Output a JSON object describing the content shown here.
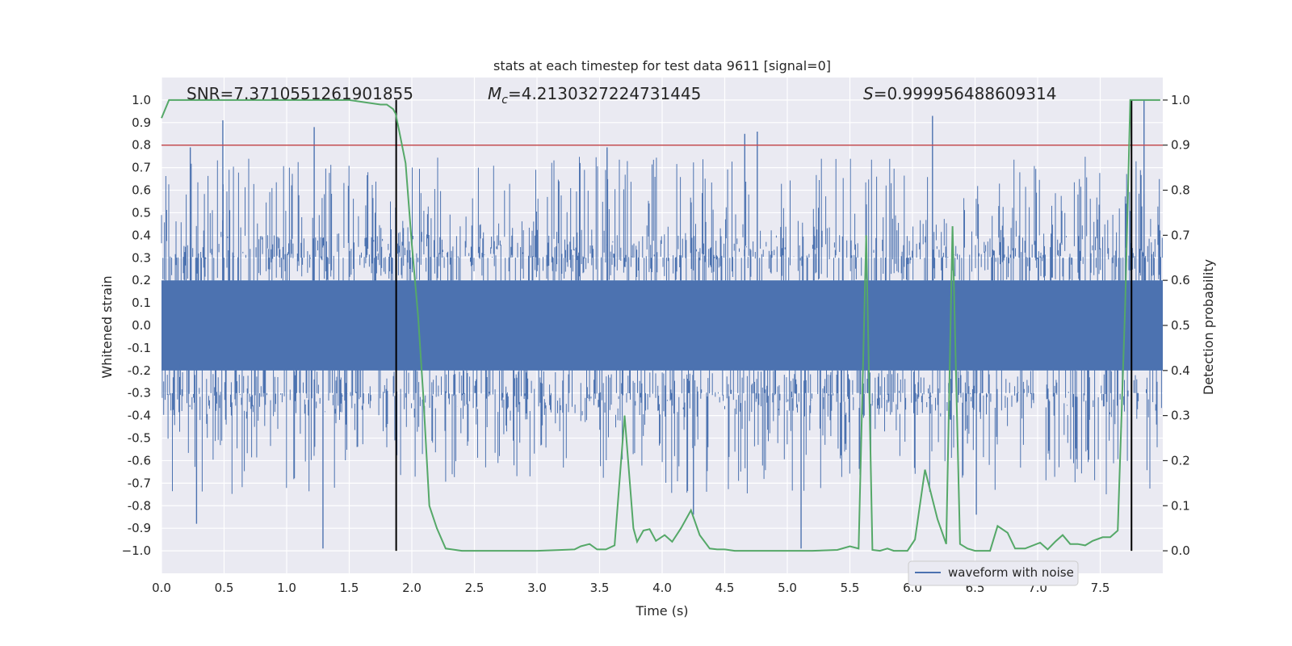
{
  "chart_data": {
    "type": "line",
    "title": "stats at each timestep for test data 9611 [signal=0]",
    "xlabel": "Time (s)",
    "ylabel_left": "Whitened strain",
    "ylabel_right": "Detection probability",
    "xlim": [
      0.0,
      8.0
    ],
    "ylim_left": [
      -1.1,
      1.1
    ],
    "ylim_right": [
      -0.05,
      1.05
    ],
    "x_ticks": [
      "0.0",
      "0.5",
      "1.0",
      "1.5",
      "2.0",
      "2.5",
      "3.0",
      "3.5",
      "4.0",
      "4.5",
      "5.0",
      "5.5",
      "6.0",
      "6.5",
      "7.0",
      "7.5"
    ],
    "x_tick_values": [
      0.0,
      0.5,
      1.0,
      1.5,
      2.0,
      2.5,
      3.0,
      3.5,
      4.0,
      4.5,
      5.0,
      5.5,
      6.0,
      6.5,
      7.0,
      7.5
    ],
    "y_left_ticks": [
      "1.0",
      "0.9",
      "0.8",
      "0.7",
      "0.6",
      "0.5",
      "0.4",
      "0.3",
      "0.2",
      "0.1",
      "0.0",
      "-0.1",
      "-0.2",
      "-0.3",
      "-0.4",
      "-0.5",
      "-0.6",
      "-0.7",
      "-0.8",
      "-0.9",
      "−1.0"
    ],
    "y_left_tick_values": [
      1.0,
      0.9,
      0.8,
      0.7,
      0.6,
      0.5,
      0.4,
      0.3,
      0.2,
      0.1,
      0.0,
      -0.1,
      -0.2,
      -0.3,
      -0.4,
      -0.5,
      -0.6,
      -0.7,
      -0.8,
      -0.9,
      -1.0
    ],
    "y_right_ticks": [
      "1.0",
      "0.9",
      "0.8",
      "0.7",
      "0.6",
      "0.5",
      "0.4",
      "0.3",
      "0.2",
      "0.1",
      "0.0"
    ],
    "y_right_tick_values": [
      1.0,
      0.9,
      0.8,
      0.7,
      0.6,
      0.5,
      0.4,
      0.3,
      0.2,
      0.1,
      0.0
    ],
    "annotations": {
      "snr": "SNR=7.3710551261901855",
      "mc_symbol": "M",
      "mc_sub": "c",
      "mc_value": "=4.2130327224731445",
      "s_symbol": "S",
      "s_value": "=0.999956488609314"
    },
    "threshold": {
      "value": 0.8,
      "axis": "left",
      "color": "#c44e52"
    },
    "vertical_markers": [
      1.875,
      7.75
    ],
    "legend": {
      "label": "waveform with noise",
      "placement": "lower-right"
    },
    "series": [
      {
        "name": "waveform with noise",
        "axis": "left",
        "kind": "noise",
        "color": "#4c72b0",
        "envelope_min": -0.99,
        "envelope_max": 1.0,
        "seed": 9611,
        "peaks": [
          {
            "x": 0.49,
            "y": 0.91
          },
          {
            "x": 1.22,
            "y": 0.88
          },
          {
            "x": 1.29,
            "y": -0.99
          },
          {
            "x": 0.28,
            "y": -0.88
          },
          {
            "x": 4.66,
            "y": 0.85
          },
          {
            "x": 4.76,
            "y": 0.86
          },
          {
            "x": 6.16,
            "y": 0.93
          },
          {
            "x": 7.85,
            "y": 1.0
          },
          {
            "x": 5.11,
            "y": -0.99
          },
          {
            "x": 4.25,
            "y": -0.84
          },
          {
            "x": 6.51,
            "y": -0.84
          },
          {
            "x": 3.56,
            "y": 0.79
          },
          {
            "x": 0.23,
            "y": 0.79
          }
        ]
      },
      {
        "name": "detection probability",
        "axis": "right",
        "color": "#55a868",
        "x": [
          0.0,
          0.06,
          0.12,
          0.25,
          0.5,
          0.75,
          1.0,
          1.25,
          1.5,
          1.75,
          1.8,
          1.85,
          1.87,
          1.9,
          1.95,
          2.0,
          2.05,
          2.09,
          2.14,
          2.2,
          2.27,
          2.4,
          2.6,
          2.8,
          3.0,
          3.2,
          3.3,
          3.35,
          3.42,
          3.48,
          3.55,
          3.62,
          3.7,
          3.77,
          3.8,
          3.85,
          3.9,
          3.95,
          4.02,
          4.08,
          4.15,
          4.23,
          4.3,
          4.38,
          4.44,
          4.5,
          4.58,
          4.7,
          4.85,
          5.0,
          5.2,
          5.4,
          5.5,
          5.57,
          5.63,
          5.68,
          5.74,
          5.8,
          5.85,
          5.9,
          5.96,
          6.02,
          6.1,
          6.2,
          6.27,
          6.32,
          6.38,
          6.44,
          6.5,
          6.56,
          6.62,
          6.68,
          6.76,
          6.82,
          6.9,
          7.02,
          7.08,
          7.14,
          7.2,
          7.26,
          7.32,
          7.38,
          7.44,
          7.52,
          7.58,
          7.64,
          7.7,
          7.74,
          7.78,
          7.82,
          7.86,
          7.92,
          7.98
        ],
        "y": [
          0.96,
          1.0,
          1.0,
          1.0,
          1.0,
          1.0,
          1.0,
          1.0,
          1.0,
          0.99,
          0.99,
          0.98,
          0.97,
          0.93,
          0.86,
          0.68,
          0.52,
          0.35,
          0.1,
          0.05,
          0.005,
          0.0,
          0.0,
          0.0,
          0.0,
          0.002,
          0.003,
          0.01,
          0.015,
          0.003,
          0.003,
          0.012,
          0.3,
          0.05,
          0.02,
          0.045,
          0.048,
          0.022,
          0.035,
          0.02,
          0.05,
          0.09,
          0.035,
          0.005,
          0.003,
          0.003,
          0.0,
          0.0,
          0.0,
          0.0,
          0.0,
          0.002,
          0.01,
          0.005,
          0.7,
          0.002,
          0.0,
          0.005,
          0.0,
          0.0,
          0.0,
          0.025,
          0.18,
          0.07,
          0.015,
          0.72,
          0.015,
          0.005,
          0.0,
          0.0,
          0.0,
          0.055,
          0.04,
          0.005,
          0.005,
          0.018,
          0.003,
          0.02,
          0.035,
          0.015,
          0.015,
          0.012,
          0.022,
          0.03,
          0.03,
          0.045,
          0.55,
          1.0,
          1.0,
          1.0,
          1.0,
          1.0,
          1.0
        ]
      }
    ]
  }
}
